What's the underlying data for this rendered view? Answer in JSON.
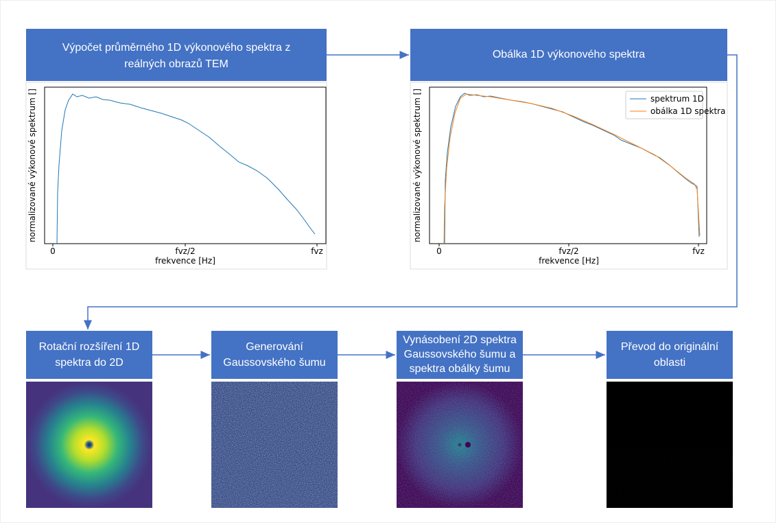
{
  "nodes": [
    {
      "lines": [
        "Výpočet průměrného 1D výkonového spektra z",
        "reálných obrazů TEM"
      ]
    },
    {
      "lines": [
        "Obálka 1D výkonového spektra"
      ]
    },
    {
      "lines": [
        "Rotační rozšíření 1D",
        "spektra do 2D"
      ]
    },
    {
      "lines": [
        "Generování",
        "Gaussovského šumu"
      ]
    },
    {
      "lines": [
        "Vynásobení 2D spektra",
        "Gaussovského šumu a",
        "spektra obálky šumu"
      ]
    },
    {
      "lines": [
        "Převod do originální",
        "oblasti"
      ]
    }
  ],
  "plots": [
    {
      "y_label": "normalizované výkonové spektrum []",
      "x_label": "frekvence [Hz]",
      "x_ticks": [
        "0",
        "fvz/2",
        "fvz"
      ]
    },
    {
      "y_label": "normalizované výkonové spektrum []",
      "x_label": "frekvence [Hz]",
      "x_ticks": [
        "0",
        "fvz/2",
        "fvz"
      ],
      "legend": [
        "spektrum 1D",
        "obálka 1D spektra"
      ]
    }
  ]
}
